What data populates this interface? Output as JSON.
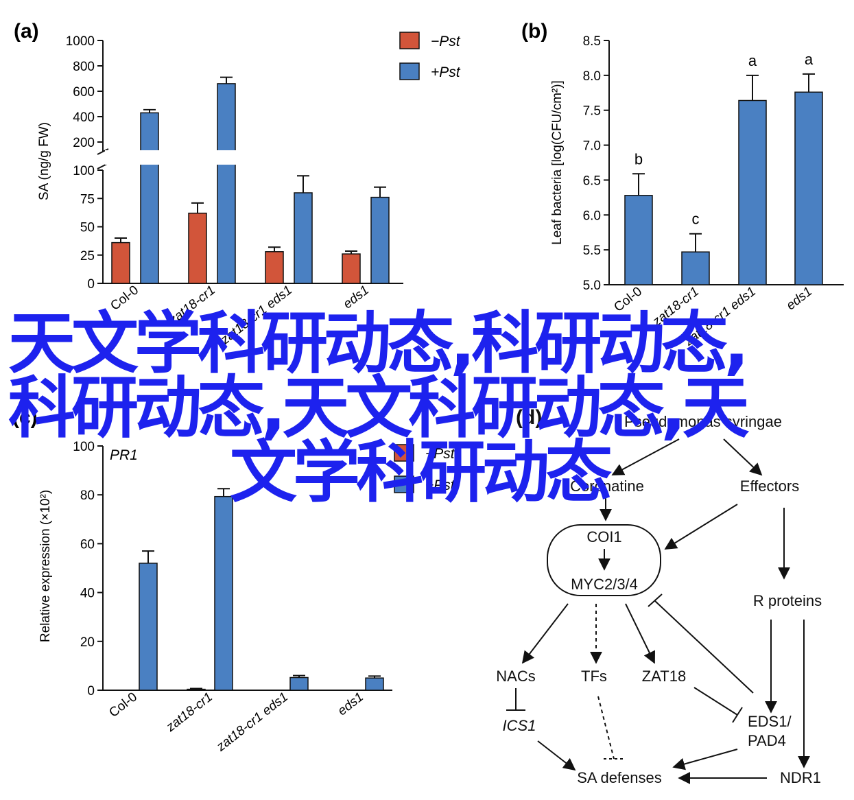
{
  "chart_data": [
    {
      "panel": "(a)",
      "type": "bar",
      "ylabel": "SA (ng/g FW)",
      "categories": [
        "Col-0",
        "zat18-cr1",
        "zat18-cr1 eds1",
        "eds1"
      ],
      "yticks_lower": [
        "0",
        "25",
        "50",
        "75",
        "100"
      ],
      "yticks_upper": [
        "200",
        "400",
        "600",
        "800",
        "1000"
      ],
      "series": [
        {
          "name": "−Pst",
          "color": "#d2553a",
          "values": [
            36,
            62,
            28,
            26
          ],
          "errors": [
            4,
            9,
            4,
            2.5
          ]
        },
        {
          "name": "+Pst",
          "color": "#4a80c2",
          "values": [
            430,
            660,
            80,
            76
          ],
          "errors": [
            25,
            50,
            15,
            9
          ]
        }
      ],
      "legend_position": "top-right"
    },
    {
      "panel": "(b)",
      "type": "bar",
      "ylabel": "Leaf bacteria [log(CFU/cm²)]",
      "categories": [
        "Col-0",
        "zat18-cr1",
        "zat18-cr1 eds1",
        "eds1"
      ],
      "yticks": [
        "5.0",
        "5.5",
        "6.0",
        "6.5",
        "7.0",
        "7.5",
        "8.0",
        "8.5"
      ],
      "ylim": [
        5.0,
        8.5
      ],
      "color": "#4a80c2",
      "values": [
        6.28,
        5.47,
        7.64,
        7.76
      ],
      "errors": [
        0.31,
        0.26,
        0.36,
        0.26
      ],
      "letters": [
        "b",
        "c",
        "a",
        "a"
      ]
    },
    {
      "panel": "(c)",
      "type": "bar",
      "subtitle": "PR1",
      "ylabel": "Relative expression (×10²)",
      "categories": [
        "Col-0",
        "zat18-cr1",
        "zat18-cr1 eds1",
        "eds1"
      ],
      "yticks": [
        "0",
        "20",
        "40",
        "60",
        "80",
        "100"
      ],
      "ylim": [
        0,
        100
      ],
      "series": [
        {
          "name": "−Pst",
          "color": "#d2553a",
          "values": [
            0,
            0.4,
            0,
            0
          ],
          "errors": [
            0,
            0.3,
            0,
            0
          ]
        },
        {
          "name": "+Pst",
          "color": "#4a80c2",
          "values": [
            52,
            79.3,
            5.2,
            5.0
          ],
          "errors": [
            5,
            3.2,
            0.8,
            0.8
          ]
        }
      ]
    }
  ],
  "panel_labels": {
    "a": "(a)",
    "b": "(b)",
    "c": "(c)",
    "d": "(d)"
  },
  "diagram": {
    "nodes": {
      "pseudomonas": "Pseudomonas syringae",
      "coronatine": "Coronatine",
      "effectors": "Effectors",
      "coi1": "COI1",
      "myc": "MYC2/3/4",
      "r_proteins": "R proteins",
      "nacs": "NACs",
      "tfs": "TFs",
      "zat18": "ZAT18",
      "ics1": "ICS1",
      "eds1_line1": "EDS1/",
      "eds1_line2": "PAD4",
      "sa_defenses": "SA defenses",
      "ndr1": "NDR1"
    }
  },
  "watermark": {
    "line1": "天文学科研动态,科研动态,",
    "line2": "科研动态,天文科研动态,天",
    "line3": "文学科研动态",
    "color": "#1d22ee"
  }
}
